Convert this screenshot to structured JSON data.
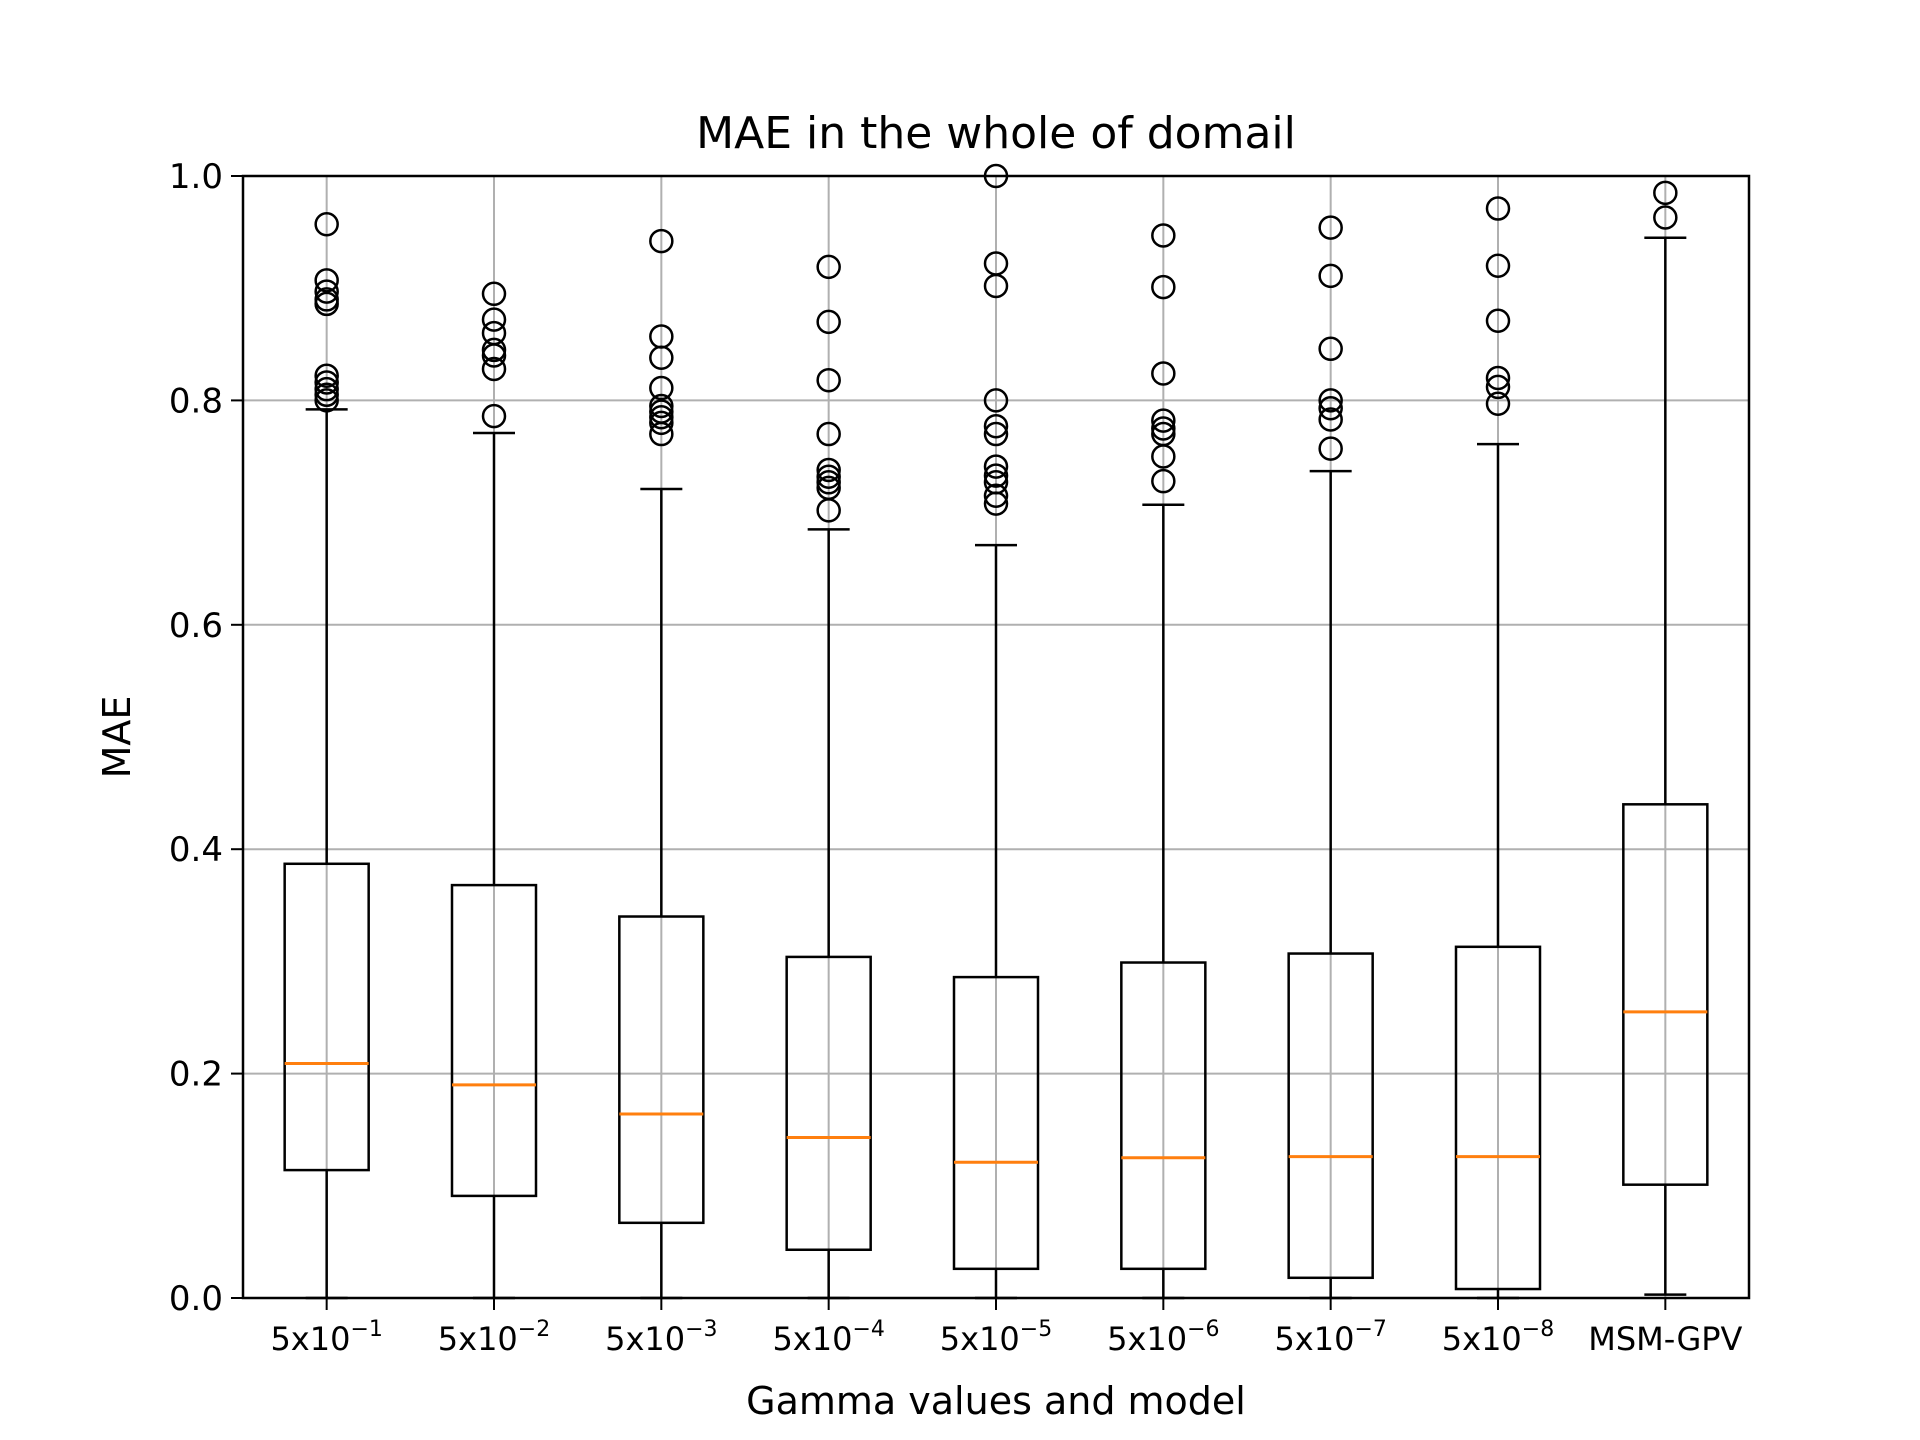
{
  "chart_data": {
    "type": "box",
    "title": "MAE in the whole of domail",
    "xlabel": "Gamma values and model",
    "ylabel": "MAE",
    "ylim": [
      0.0,
      1.0
    ],
    "yticks": [
      "0.0",
      "0.2",
      "0.4",
      "0.6",
      "0.8",
      "1.0"
    ],
    "grid": true,
    "colors": {
      "box": "#000000",
      "median": "#ff7f0e",
      "grid": "#b0b0b0"
    },
    "categories": [
      {
        "base": "5x10",
        "exp": "−1"
      },
      {
        "base": "5x10",
        "exp": "−2"
      },
      {
        "base": "5x10",
        "exp": "−3"
      },
      {
        "base": "5x10",
        "exp": "−4"
      },
      {
        "base": "5x10",
        "exp": "−5"
      },
      {
        "base": "5x10",
        "exp": "−6"
      },
      {
        "base": "5x10",
        "exp": "−7"
      },
      {
        "base": "5x10",
        "exp": "−8"
      },
      {
        "base": "MSM-GPV",
        "exp": ""
      }
    ],
    "boxes": [
      {
        "whislo": 0.0,
        "q1": 0.114,
        "med": 0.209,
        "q3": 0.387,
        "whishi": 0.792,
        "fliers": [
          0.957,
          0.907,
          0.897,
          0.89,
          0.886,
          0.822,
          0.816,
          0.81,
          0.805,
          0.8
        ]
      },
      {
        "whislo": 0.0,
        "q1": 0.091,
        "med": 0.19,
        "q3": 0.368,
        "whishi": 0.771,
        "fliers": [
          0.895,
          0.872,
          0.86,
          0.845,
          0.84,
          0.828,
          0.786
        ]
      },
      {
        "whislo": 0.0,
        "q1": 0.067,
        "med": 0.164,
        "q3": 0.34,
        "whishi": 0.721,
        "fliers": [
          0.942,
          0.857,
          0.838,
          0.811,
          0.795,
          0.79,
          0.785,
          0.78,
          0.77
        ]
      },
      {
        "whislo": 0.0,
        "q1": 0.043,
        "med": 0.143,
        "q3": 0.304,
        "whishi": 0.685,
        "fliers": [
          0.919,
          0.87,
          0.818,
          0.77,
          0.738,
          0.732,
          0.727,
          0.722,
          0.702
        ]
      },
      {
        "whislo": 0.0,
        "q1": 0.026,
        "med": 0.121,
        "q3": 0.286,
        "whishi": 0.671,
        "fliers": [
          1.0,
          0.922,
          0.902,
          0.8,
          0.777,
          0.77,
          0.741,
          0.733,
          0.727,
          0.715,
          0.708
        ]
      },
      {
        "whislo": 0.0,
        "q1": 0.026,
        "med": 0.125,
        "q3": 0.299,
        "whishi": 0.707,
        "fliers": [
          0.947,
          0.901,
          0.824,
          0.782,
          0.775,
          0.77,
          0.75,
          0.728
        ]
      },
      {
        "whislo": 0.0,
        "q1": 0.018,
        "med": 0.126,
        "q3": 0.307,
        "whishi": 0.737,
        "fliers": [
          0.954,
          0.911,
          0.846,
          0.8,
          0.793,
          0.783,
          0.757
        ]
      },
      {
        "whislo": 0.0,
        "q1": 0.008,
        "med": 0.126,
        "q3": 0.313,
        "whishi": 0.761,
        "fliers": [
          0.971,
          0.92,
          0.871,
          0.82,
          0.812,
          0.797
        ]
      },
      {
        "whislo": 0.003,
        "q1": 0.101,
        "med": 0.255,
        "q3": 0.44,
        "whishi": 0.945,
        "fliers": [
          0.985,
          0.963
        ]
      }
    ]
  }
}
